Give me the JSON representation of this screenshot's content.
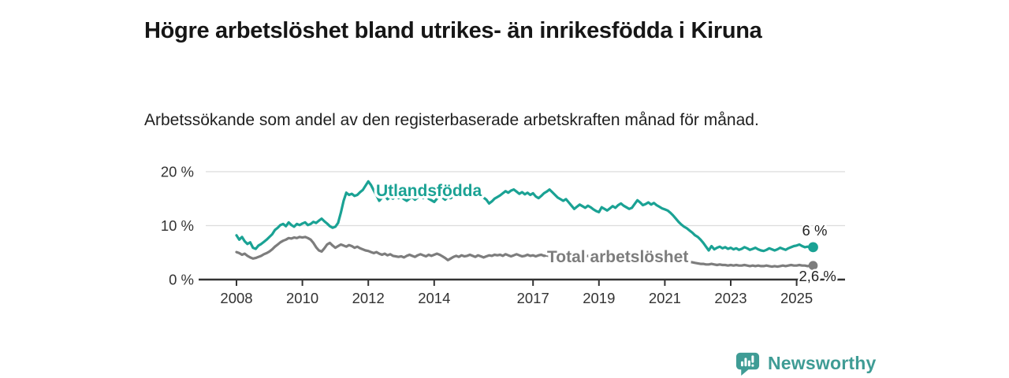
{
  "title": "Högre arbetslöshet bland utrikes- än inrikesfödda i Kiruna",
  "subtitle": "Arbetssökande som andel av den registerbaserade arbetskraften månad för månad.",
  "branding": {
    "name": "Newsworthy",
    "icon": "newsworthy-speech-bubble-bar-chart-icon",
    "color": "#3f9c95"
  },
  "chart_data": {
    "type": "line",
    "title": "Högre arbetslöshet bland utrikes- än inrikesfödda i Kiruna",
    "xlabel": "",
    "ylabel": "",
    "frequency": "monthly",
    "start_year": 2008,
    "x_axis": {
      "tick_labels": [
        "2008",
        "2010",
        "2012",
        "2014",
        "2017",
        "2019",
        "2021",
        "2023",
        "2025"
      ],
      "tick_years": [
        2008,
        2010,
        2012,
        2014,
        2017,
        2019,
        2021,
        2023,
        2025
      ],
      "range_years": [
        2008.0,
        2025.5
      ]
    },
    "y_axis": {
      "tick_labels": [
        "0 %",
        "10 %",
        "20 %"
      ],
      "tick_values": [
        0,
        10,
        20
      ],
      "ylim": [
        0,
        21.5
      ],
      "grid": true
    },
    "series": [
      {
        "name": "Utlandsfödda",
        "color": "#1aa294",
        "end_label": "6 %",
        "end_value": 6.0,
        "values": [
          8.2,
          7.4,
          7.9,
          7.1,
          6.6,
          6.9,
          5.9,
          5.7,
          6.3,
          6.6,
          7.0,
          7.4,
          7.9,
          8.4,
          9.2,
          9.6,
          10.1,
          10.3,
          9.9,
          10.6,
          10.1,
          9.8,
          10.3,
          10.1,
          10.4,
          10.6,
          10.1,
          10.3,
          10.7,
          10.5,
          10.9,
          11.3,
          10.8,
          10.4,
          9.9,
          9.6,
          9.8,
          10.5,
          12.4,
          14.6,
          16.1,
          15.7,
          15.9,
          15.5,
          15.7,
          16.2,
          16.6,
          17.4,
          18.2,
          17.5,
          16.5,
          15.6,
          14.6,
          15.2,
          15.6,
          14.9,
          15.3,
          15.0,
          15.4,
          15.1,
          15.3,
          14.9,
          14.6,
          15.0,
          15.3,
          14.8,
          15.2,
          15.6,
          15.1,
          15.4,
          15.0,
          14.7,
          14.4,
          15.0,
          15.6,
          15.2,
          14.8,
          15.3,
          15.1,
          15.5,
          15.9,
          15.4,
          15.7,
          16.0,
          16.3,
          15.9,
          15.5,
          15.8,
          16.1,
          15.6,
          15.2,
          14.8,
          14.1,
          14.5,
          15.0,
          15.3,
          15.6,
          16.0,
          16.4,
          16.1,
          16.5,
          16.7,
          16.3,
          15.9,
          16.2,
          15.8,
          16.1,
          15.7,
          16.0,
          15.4,
          15.1,
          15.5,
          16.0,
          16.3,
          16.7,
          16.2,
          15.7,
          15.2,
          14.9,
          14.6,
          14.9,
          14.3,
          13.7,
          13.1,
          13.5,
          13.9,
          13.6,
          13.3,
          13.7,
          13.4,
          13.0,
          12.7,
          12.5,
          13.4,
          13.1,
          12.8,
          13.2,
          13.6,
          13.3,
          13.8,
          14.1,
          13.7,
          13.4,
          13.1,
          13.3,
          14.0,
          14.7,
          14.3,
          13.8,
          14.0,
          14.3,
          13.9,
          14.2,
          13.8,
          13.5,
          13.2,
          13.0,
          12.8,
          12.4,
          11.9,
          11.3,
          10.7,
          10.2,
          9.8,
          9.5,
          9.1,
          8.7,
          8.2,
          7.9,
          7.4,
          6.8,
          6.1,
          5.4,
          6.2,
          5.6,
          5.9,
          6.1,
          5.8,
          6.0,
          5.7,
          5.9,
          5.6,
          5.8,
          5.5,
          5.7,
          6.0,
          5.8,
          5.5,
          5.7,
          5.9,
          5.6,
          5.4,
          5.3,
          5.5,
          5.8,
          5.6,
          5.4,
          5.6,
          5.9,
          5.7,
          5.5,
          5.8,
          6.0,
          6.2,
          6.3,
          6.5,
          6.2,
          6.0,
          6.1,
          5.9,
          6.0
        ]
      },
      {
        "name": "Total arbetslöshet",
        "color": "#7d7d7d",
        "end_label": "2,6 %",
        "end_value": 2.6,
        "values": [
          5.1,
          4.9,
          4.6,
          4.8,
          4.4,
          4.1,
          3.9,
          4.0,
          4.2,
          4.4,
          4.7,
          4.9,
          5.2,
          5.6,
          6.1,
          6.5,
          6.9,
          7.2,
          7.4,
          7.7,
          7.6,
          7.8,
          7.7,
          7.9,
          7.8,
          7.9,
          7.7,
          7.4,
          6.8,
          6.0,
          5.4,
          5.2,
          5.8,
          6.5,
          6.8,
          6.3,
          5.9,
          6.2,
          6.5,
          6.3,
          6.1,
          6.4,
          6.2,
          5.9,
          6.1,
          5.8,
          5.6,
          5.4,
          5.3,
          5.1,
          4.9,
          5.1,
          4.8,
          4.6,
          4.8,
          4.5,
          4.7,
          4.4,
          4.3,
          4.2,
          4.3,
          4.1,
          4.4,
          4.6,
          4.4,
          4.2,
          4.5,
          4.7,
          4.5,
          4.3,
          4.6,
          4.4,
          4.6,
          4.8,
          4.6,
          4.3,
          4.0,
          3.6,
          3.9,
          4.2,
          4.4,
          4.2,
          4.5,
          4.3,
          4.4,
          4.6,
          4.4,
          4.2,
          4.5,
          4.3,
          4.1,
          4.3,
          4.5,
          4.4,
          4.6,
          4.5,
          4.6,
          4.4,
          4.7,
          4.5,
          4.3,
          4.5,
          4.7,
          4.5,
          4.3,
          4.4,
          4.6,
          4.4,
          4.5,
          4.3,
          4.5,
          4.6,
          4.4,
          4.5,
          4.3,
          4.4,
          4.6,
          4.4,
          4.3,
          4.4,
          4.5,
          4.3,
          4.2,
          4.4,
          4.3,
          4.4,
          4.2,
          4.3,
          4.4,
          4.3,
          4.2,
          4.1,
          4.2,
          4.3,
          4.1,
          4.2,
          4.3,
          4.2,
          4.1,
          4.2,
          4.4,
          4.3,
          4.2,
          4.1,
          4.2,
          4.4,
          4.7,
          4.8,
          4.6,
          4.7,
          4.6,
          4.5,
          4.6,
          4.4,
          4.3,
          4.4,
          4.3,
          4.4,
          4.2,
          4.1,
          4.0,
          3.9,
          3.8,
          3.6,
          3.5,
          3.3,
          3.2,
          3.1,
          3.0,
          2.9,
          2.9,
          2.8,
          2.8,
          2.9,
          2.8,
          2.7,
          2.8,
          2.7,
          2.7,
          2.6,
          2.7,
          2.6,
          2.7,
          2.6,
          2.6,
          2.7,
          2.6,
          2.5,
          2.6,
          2.5,
          2.6,
          2.5,
          2.5,
          2.6,
          2.5,
          2.4,
          2.5,
          2.4,
          2.5,
          2.6,
          2.5,
          2.6,
          2.7,
          2.6,
          2.6,
          2.7,
          2.6,
          2.6,
          2.5,
          2.6,
          2.6
        ]
      }
    ]
  }
}
